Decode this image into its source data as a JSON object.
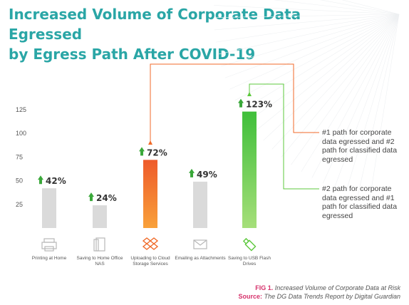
{
  "title_line1": "Increased Volume of Corporate Data Egressed",
  "title_line2": "by Egress Path After COVID-19",
  "chart_data": {
    "type": "bar",
    "categories": [
      "Printing at Home",
      "Saving to Home Office NAS",
      "Uploading to Cloud Storage Services",
      "Emailing as Attachments",
      "Saving to USB Flash Drives"
    ],
    "values": [
      42,
      24,
      72,
      49,
      123
    ],
    "data_labels": [
      "42%",
      "24%",
      "72%",
      "49%",
      "123%"
    ],
    "ylim": [
      0,
      140
    ],
    "yticks": [
      25,
      50,
      75,
      100,
      125
    ],
    "ytick_labels": [
      "25",
      "50",
      "75",
      "100",
      "125"
    ],
    "grid": false,
    "icons": [
      "printer-icon",
      "nas-device-icon",
      "dropbox-icon",
      "envelope-icon",
      "usb-drive-icon"
    ],
    "colors": [
      "#d9d9d9",
      "#d9d9d9",
      "#f06a28",
      "#d9d9d9",
      "#5cc83c"
    ],
    "callouts": [
      {
        "text_line1": "#1 path for corporate",
        "text_line2": "data egressed and #2",
        "text_line3": "path for classified data",
        "text_line4": "egressed",
        "color": "#f06a28"
      },
      {
        "text_line1": "#2 path for corporate",
        "text_line2": "data egressed and #1",
        "text_line3": "path for classified data",
        "text_line4": "egressed",
        "color": "#5cc83c"
      }
    ]
  },
  "footer": {
    "fig_label": "FIG 1.",
    "fig_text": "Increased Volume of Corporate Data at Risk",
    "source_label": "Source:",
    "source_text": "The DG Data Trends Report by Digital Guardian"
  },
  "colors": {
    "title": "#2aa6a6",
    "arrow_up": "#3aa83a",
    "accent_pink": "#d6336c"
  }
}
